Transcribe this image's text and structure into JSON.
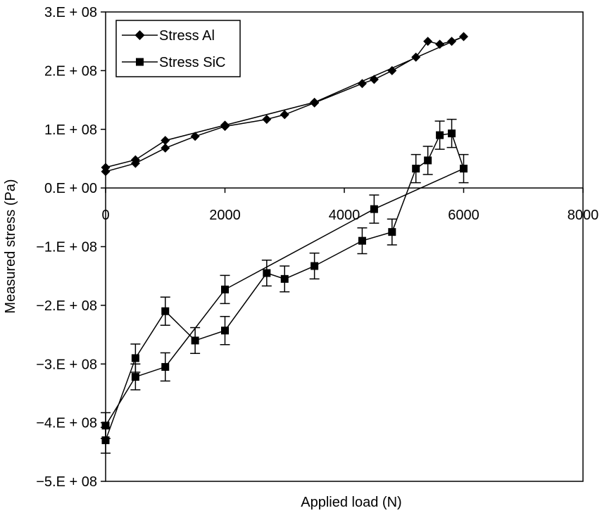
{
  "chart_data": {
    "type": "line",
    "xlabel": "Applied load (N)",
    "ylabel": "Measured stress (Pa)",
    "xlim": [
      0,
      8000
    ],
    "ylim": [
      -500000000,
      300000000
    ],
    "x_ticks": [
      0,
      2000,
      4000,
      6000,
      8000
    ],
    "x_tick_labels": [
      "0",
      "2000",
      "4000",
      "6000",
      "8000"
    ],
    "y_ticks": [
      300000000,
      200000000,
      100000000,
      0,
      -100000000,
      -200000000,
      -300000000,
      -400000000,
      -500000000
    ],
    "y_tick_labels": [
      "3.E + 08",
      "2.E + 08",
      "1.E + 08",
      "0.E + 00",
      "−1.E + 08",
      "−2.E + 08",
      "−3.E + 08",
      "−4.E + 08",
      "−5.E + 08"
    ],
    "grid": false,
    "legend_position": "top-left",
    "series": [
      {
        "name": "Stress Al",
        "marker": "diamond",
        "color": "#000000",
        "points": [
          [
            0,
            28000000
          ],
          [
            500,
            42000000
          ],
          [
            1000,
            68000000
          ],
          [
            1500,
            88000000
          ],
          [
            2000,
            105000000
          ],
          [
            2700,
            117000000
          ],
          [
            3000,
            125000000
          ],
          [
            3500,
            145000000
          ],
          [
            4300,
            178000000
          ],
          [
            4500,
            185000000
          ],
          [
            4800,
            200000000
          ],
          [
            5200,
            223000000
          ],
          [
            5400,
            250000000
          ],
          [
            5600,
            245000000
          ],
          [
            5800,
            250000000
          ],
          [
            6000,
            258000000
          ],
          [
            3500,
            146000000
          ],
          [
            2000,
            107000000
          ],
          [
            1000,
            81000000
          ],
          [
            500,
            48000000
          ],
          [
            0,
            35000000
          ]
        ]
      },
      {
        "name": "Stress SiC",
        "marker": "square",
        "color": "#000000",
        "points": [
          [
            0,
            -430000000
          ],
          [
            500,
            -290000000
          ],
          [
            1000,
            -210000000
          ],
          [
            1500,
            -260000000
          ],
          [
            2000,
            -243000000
          ],
          [
            2700,
            -145000000
          ],
          [
            3000,
            -155000000
          ],
          [
            3500,
            -133000000
          ],
          [
            4300,
            -90000000
          ],
          [
            4800,
            -75000000
          ],
          [
            5200,
            33000000
          ],
          [
            5400,
            47000000
          ],
          [
            5600,
            90000000
          ],
          [
            5800,
            93000000
          ],
          [
            6000,
            33000000
          ],
          [
            4500,
            -36000000
          ],
          [
            2000,
            -173000000
          ],
          [
            1000,
            -305000000
          ],
          [
            500,
            -322000000
          ],
          [
            0,
            -405000000
          ]
        ],
        "error": [
          22000000,
          24000000,
          24000000,
          22000000,
          24000000,
          22000000,
          22000000,
          22000000,
          22000000,
          22000000,
          24000000,
          24000000,
          24000000,
          24000000,
          24000000,
          24000000,
          24000000,
          24000000,
          22000000,
          22000000
        ]
      }
    ]
  }
}
